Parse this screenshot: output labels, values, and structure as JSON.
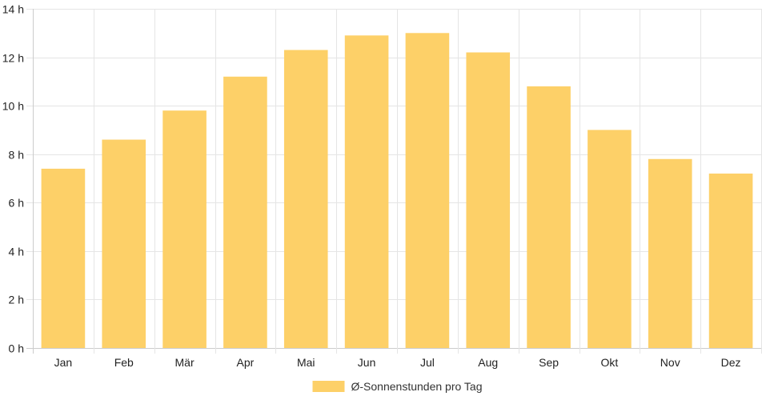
{
  "chart_data": {
    "type": "bar",
    "categories": [
      "Jan",
      "Feb",
      "Mär",
      "Apr",
      "Mai",
      "Jun",
      "Jul",
      "Aug",
      "Sep",
      "Okt",
      "Nov",
      "Dez"
    ],
    "series": [
      {
        "name": "Ø-Sonnenstunden pro Tag",
        "values": [
          7.4,
          8.6,
          9.8,
          11.2,
          12.3,
          12.9,
          13.0,
          12.2,
          10.8,
          9.0,
          7.8,
          7.2
        ],
        "color": "#fdd068"
      }
    ],
    "y_ticks": [
      "0 h",
      "2 h",
      "4 h",
      "6 h",
      "8 h",
      "10 h",
      "12 h",
      "14 h"
    ],
    "ylim": [
      0,
      14
    ],
    "grid": true,
    "legend_position": "bottom",
    "colors": {
      "grid": "#e5e5e5",
      "axis": "#cccccc",
      "text": "#222222"
    }
  }
}
